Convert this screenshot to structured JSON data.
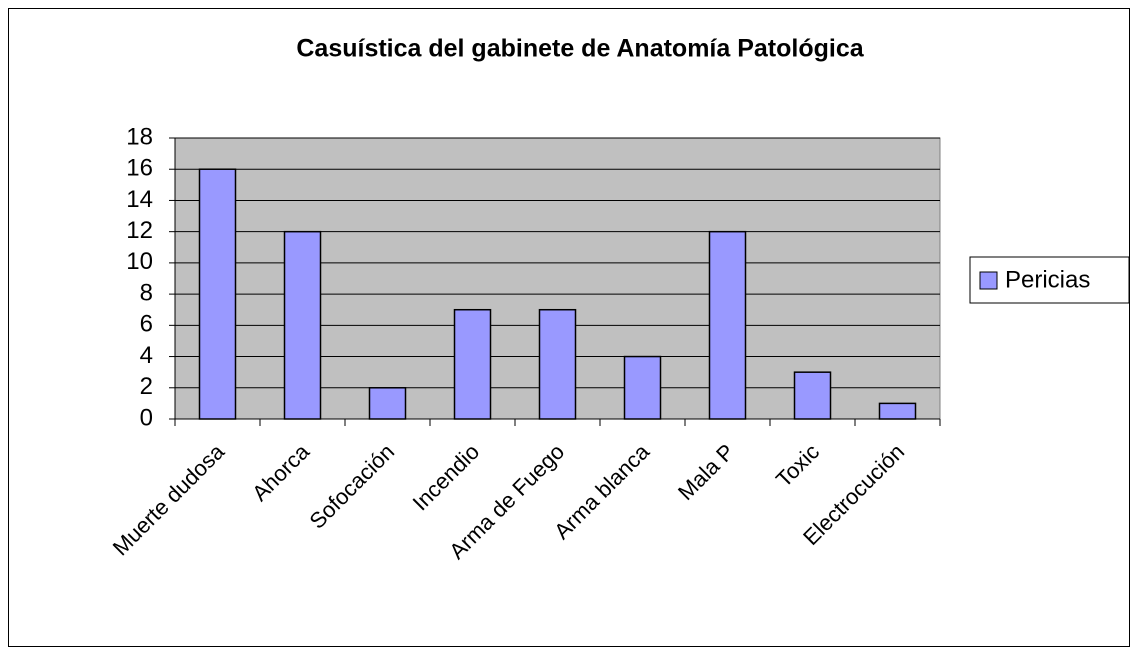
{
  "chart_data": {
    "type": "bar",
    "title": "Casuística del gabinete de Anatomía Patológica",
    "categories": [
      "Muerte dudosa",
      "Ahorca",
      "Sofocación",
      "Incendio",
      "Arma de Fuego",
      "Arma blanca",
      "Mala P",
      "Toxic",
      "Electrocución"
    ],
    "series": [
      {
        "name": "Pericias",
        "color": "#9999ff",
        "values": [
          16,
          12,
          2,
          7,
          7,
          4,
          12,
          3,
          1
        ]
      }
    ],
    "ylim": [
      0,
      18
    ],
    "yticks": [
      0,
      2,
      4,
      6,
      8,
      10,
      12,
      14,
      16,
      18
    ],
    "grid": true,
    "legend": "right"
  }
}
